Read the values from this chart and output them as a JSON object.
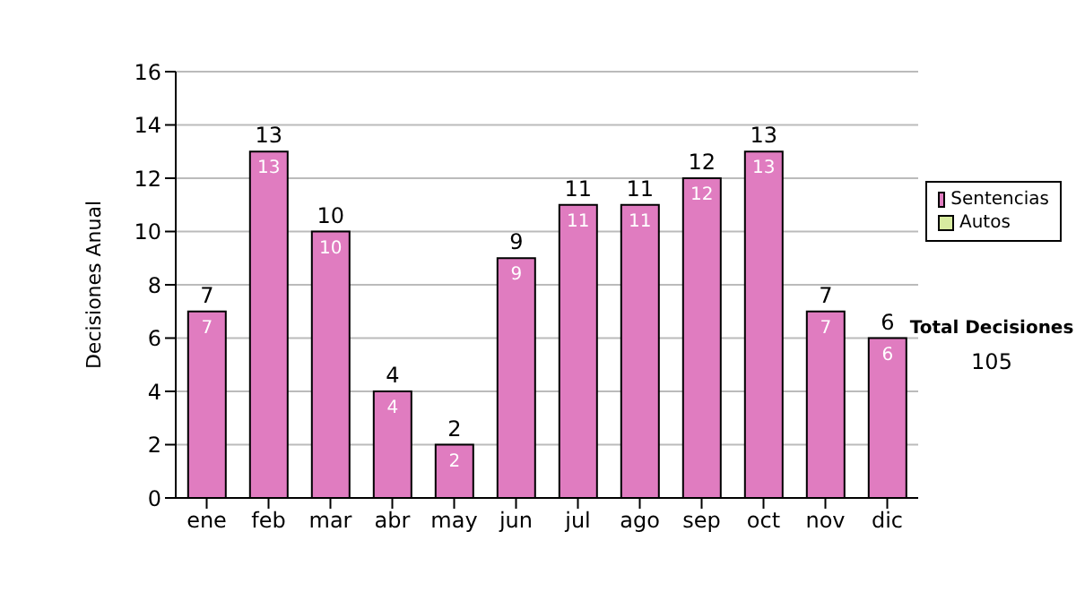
{
  "chart_data": {
    "type": "bar",
    "ylabel": "Decisiones Anual",
    "categories": [
      "ene",
      "feb",
      "mar",
      "abr",
      "may",
      "jun",
      "jul",
      "ago",
      "sep",
      "oct",
      "nov",
      "dic"
    ],
    "series": [
      {
        "name": "Sentencias",
        "color": "#e07cc0",
        "values": [
          7,
          13,
          10,
          4,
          2,
          9,
          11,
          11,
          12,
          13,
          7,
          6
        ],
        "value_labels": [
          "7",
          "13",
          "10",
          "4",
          "2",
          "9",
          "11",
          "11",
          "12",
          "13",
          "7",
          "6"
        ]
      },
      {
        "name": "Autos",
        "color": "#d8eca0",
        "values": [
          0,
          0,
          0,
          0,
          0,
          0,
          0,
          0,
          0,
          0,
          0,
          0
        ]
      }
    ],
    "stacked": true,
    "totals": [
      "7",
      "13",
      "10",
      "4",
      "2",
      "9",
      "11",
      "11",
      "12",
      "13",
      "7",
      "6"
    ],
    "ylim": [
      0,
      16
    ],
    "yticks": [
      0,
      2,
      4,
      6,
      8,
      10,
      12,
      14,
      16
    ],
    "grid": "y",
    "legend": "right",
    "annotations": [
      "Total Decisiones",
      "105"
    ]
  }
}
